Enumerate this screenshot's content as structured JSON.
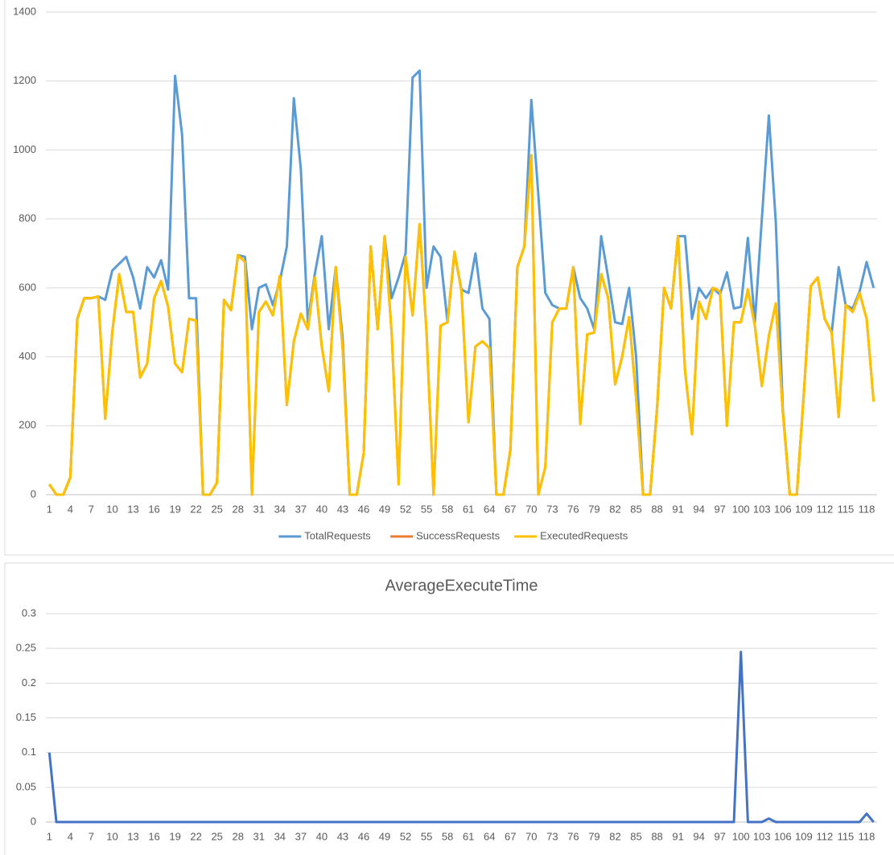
{
  "chart_data": [
    {
      "type": "line",
      "categories": [
        1,
        null,
        null,
        4,
        null,
        null,
        7,
        null,
        null,
        10,
        null,
        null,
        13,
        null,
        null,
        16,
        null,
        null,
        19,
        null,
        null,
        22,
        null,
        null,
        25,
        null,
        null,
        28,
        null,
        null,
        31,
        null,
        null,
        34,
        null,
        null,
        37,
        null,
        null,
        40,
        null,
        null,
        43,
        null,
        null,
        46,
        null,
        null,
        49,
        null,
        null,
        52,
        null,
        null,
        55,
        null,
        null,
        58,
        null,
        null,
        61,
        null,
        null,
        64,
        null,
        null,
        67,
        null,
        null,
        70,
        null,
        null,
        73,
        null,
        null,
        76,
        null,
        null,
        79,
        null,
        null,
        82,
        null,
        null,
        85,
        null,
        null,
        88,
        null,
        null,
        91,
        null,
        null,
        94,
        null,
        null,
        97,
        null,
        null,
        100,
        null,
        null,
        103,
        null,
        null,
        106,
        null,
        null,
        109,
        null,
        null,
        112,
        null,
        null,
        115,
        null,
        null,
        118,
        null
      ],
      "series": [
        {
          "name": "TotalRequests",
          "color": "#5b9bd5",
          "values": [
            30,
            0,
            0,
            50,
            510,
            570,
            570,
            575,
            565,
            650,
            670,
            690,
            630,
            540,
            660,
            630,
            680,
            595,
            1215,
            1045,
            570,
            570,
            0,
            0,
            35,
            565,
            535,
            695,
            690,
            480,
            600,
            610,
            550,
            620,
            720,
            1150,
            945,
            500,
            640,
            750,
            480,
            660,
            450,
            0,
            0,
            120,
            720,
            480,
            750,
            570,
            630,
            700,
            1210,
            1230,
            600,
            720,
            690,
            500,
            700,
            595,
            585,
            700,
            540,
            510,
            0,
            0,
            130,
            660,
            720,
            1145,
            870,
            585,
            550,
            540,
            540,
            660,
            570,
            540,
            480,
            750,
            630,
            500,
            495,
            600,
            400,
            0,
            0,
            250,
            600,
            540,
            750,
            750,
            510,
            600,
            570,
            600,
            580,
            645,
            540,
            545,
            745,
            500,
            800,
            1100,
            790,
            250,
            0,
            0,
            290,
            605,
            630,
            510,
            470,
            660,
            550,
            540,
            590,
            675,
            600
          ]
        },
        {
          "name": "SuccessRequests",
          "color": "#ed7d31",
          "values": [
            30,
            0,
            0,
            50,
            510,
            570,
            570,
            575,
            220,
            470,
            640,
            530,
            530,
            340,
            380,
            570,
            620,
            545,
            380,
            355,
            510,
            505,
            0,
            0,
            35,
            565,
            535,
            695,
            675,
            0,
            530,
            560,
            520,
            635,
            260,
            445,
            525,
            480,
            630,
            430,
            300,
            660,
            420,
            0,
            0,
            120,
            720,
            480,
            750,
            470,
            30,
            690,
            520,
            785,
            470,
            0,
            490,
            500,
            705,
            590,
            210,
            430,
            445,
            425,
            0,
            0,
            130,
            660,
            720,
            985,
            0,
            80,
            500,
            540,
            540,
            660,
            205,
            465,
            470,
            640,
            570,
            320,
            400,
            515,
            280,
            0,
            0,
            250,
            600,
            540,
            750,
            360,
            175,
            560,
            510,
            600,
            590,
            200,
            500,
            500,
            595,
            490,
            315,
            460,
            555,
            240,
            0,
            0,
            290,
            605,
            630,
            510,
            470,
            225,
            550,
            530,
            585,
            510,
            270
          ]
        },
        {
          "name": "ExecutedRequests",
          "color": "#ffc000",
          "values": [
            30,
            0,
            0,
            50,
            510,
            570,
            570,
            575,
            220,
            470,
            640,
            530,
            530,
            340,
            380,
            570,
            620,
            545,
            380,
            355,
            510,
            505,
            0,
            0,
            35,
            565,
            535,
            695,
            675,
            0,
            530,
            560,
            520,
            635,
            260,
            445,
            525,
            480,
            630,
            430,
            300,
            660,
            420,
            0,
            0,
            120,
            720,
            480,
            750,
            470,
            30,
            690,
            520,
            785,
            470,
            0,
            490,
            500,
            705,
            590,
            210,
            430,
            445,
            425,
            0,
            0,
            130,
            660,
            720,
            985,
            0,
            80,
            500,
            540,
            540,
            660,
            205,
            465,
            470,
            640,
            570,
            320,
            400,
            515,
            280,
            0,
            0,
            250,
            600,
            540,
            750,
            360,
            175,
            560,
            510,
            600,
            590,
            200,
            500,
            500,
            595,
            490,
            315,
            460,
            555,
            240,
            0,
            0,
            290,
            605,
            630,
            510,
            470,
            225,
            550,
            530,
            585,
            510,
            270
          ]
        }
      ],
      "ylim": [
        0,
        1400
      ],
      "yticks": [
        0,
        200,
        400,
        600,
        800,
        1000,
        1200,
        1400
      ],
      "grid": true,
      "legend": "bottom"
    },
    {
      "type": "line",
      "title": "AverageExecuteTime",
      "categories": [
        1,
        null,
        null,
        4,
        null,
        null,
        7,
        null,
        null,
        10,
        null,
        null,
        13,
        null,
        null,
        16,
        null,
        null,
        19,
        null,
        null,
        22,
        null,
        null,
        25,
        null,
        null,
        28,
        null,
        null,
        31,
        null,
        null,
        34,
        null,
        null,
        37,
        null,
        null,
        40,
        null,
        null,
        43,
        null,
        null,
        46,
        null,
        null,
        49,
        null,
        null,
        52,
        null,
        null,
        55,
        null,
        null,
        58,
        null,
        null,
        61,
        null,
        null,
        64,
        null,
        null,
        67,
        null,
        null,
        70,
        null,
        null,
        73,
        null,
        null,
        76,
        null,
        null,
        79,
        null,
        null,
        82,
        null,
        null,
        85,
        null,
        null,
        88,
        null,
        null,
        91,
        null,
        null,
        94,
        null,
        null,
        97,
        null,
        null,
        100,
        null,
        null,
        103,
        null,
        null,
        106,
        null,
        null,
        109,
        null,
        null,
        112,
        null,
        null,
        115,
        null,
        null,
        118,
        null
      ],
      "values": [
        0.1,
        0,
        0,
        0,
        0,
        0,
        0,
        0,
        0,
        0,
        0,
        0,
        0,
        0,
        0,
        0,
        0,
        0,
        0,
        0,
        0,
        0,
        0,
        0,
        0,
        0,
        0,
        0,
        0,
        0,
        0,
        0,
        0,
        0,
        0,
        0,
        0,
        0,
        0,
        0,
        0,
        0,
        0,
        0,
        0,
        0,
        0,
        0,
        0,
        0,
        0,
        0,
        0,
        0,
        0,
        0,
        0,
        0,
        0,
        0,
        0,
        0,
        0,
        0,
        0,
        0,
        0,
        0,
        0,
        0,
        0,
        0,
        0,
        0,
        0,
        0,
        0,
        0,
        0,
        0,
        0,
        0,
        0,
        0,
        0,
        0,
        0,
        0,
        0,
        0,
        0,
        0,
        0,
        0,
        0,
        0,
        0,
        0,
        0,
        0.245,
        0,
        0,
        0,
        0.005,
        0,
        0,
        0,
        0,
        0,
        0,
        0,
        0,
        0,
        0,
        0,
        0,
        0,
        0.012,
        0
      ],
      "color": "#4472c4",
      "ylim": [
        0,
        0.3
      ],
      "yticks": [
        0,
        0.05,
        0.1,
        0.15,
        0.2,
        0.25,
        0.3
      ],
      "grid": true
    }
  ]
}
